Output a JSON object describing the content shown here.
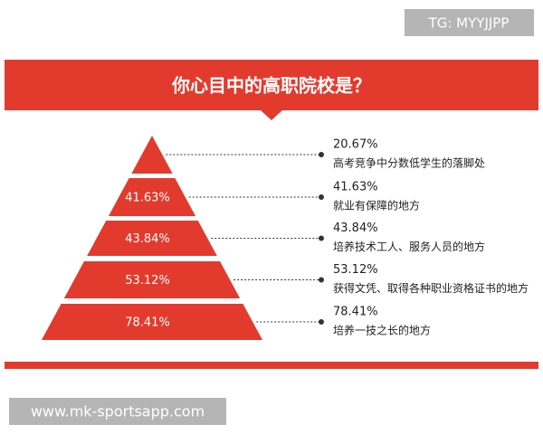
{
  "watermark_top": "TG: MYYJJPP",
  "title": "你心目中的高职院校是？",
  "levels": [
    {
      "value": "20.67%",
      "label": "高考竞争中分数低学生的落脚处"
    },
    {
      "value": "41.63%",
      "label": "就业有保障的地方"
    },
    {
      "value": "43.84%",
      "label": "培养技术工人、服务人员的地方"
    },
    {
      "value": "53.12%",
      "label": "获得文凭、取得各种职业资格证书的地方"
    },
    {
      "value": "78.41%",
      "label": "培养一技之长的地方"
    }
  ],
  "watermark_bottom": "www.mk-sportsapp.com"
}
